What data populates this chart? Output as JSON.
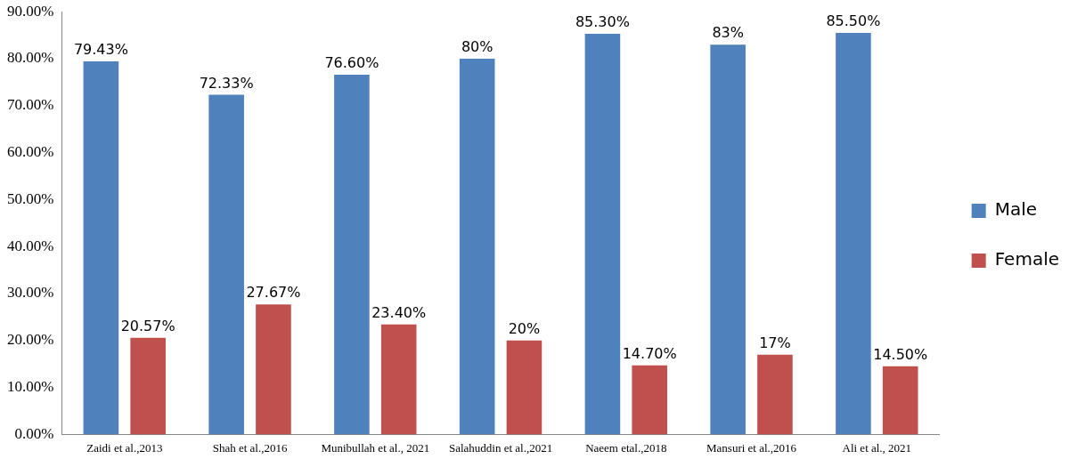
{
  "chart_data": {
    "type": "bar",
    "categories": [
      "Zaidi et al.,2013",
      "Shah et al.,2016",
      "Munibullah et al., 2021",
      "Salahuddin et al.,2021",
      "Naeem etal.,2018",
      "Mansuri et al.,2016",
      "Ali et al., 2021"
    ],
    "series": [
      {
        "name": "Male",
        "color": "#4f81bd",
        "values": [
          79.43,
          72.33,
          76.6,
          80,
          85.3,
          83,
          85.5
        ],
        "value_labels": [
          "79.43%",
          "72.33%",
          "76.60%",
          "80%",
          "85.30%",
          "83%",
          "85.50%"
        ]
      },
      {
        "name": "Female",
        "color": "#c0504d",
        "values": [
          20.57,
          27.67,
          23.4,
          20,
          14.7,
          17,
          14.5
        ],
        "value_labels": [
          "20.57%",
          "27.67%",
          "23.40%",
          "20%",
          "14.70%",
          "17%",
          "14.50%"
        ]
      }
    ],
    "ylim": [
      0,
      90
    ],
    "yticks": [
      {
        "value": 0,
        "label": "0.00%"
      },
      {
        "value": 10,
        "label": "10.00%"
      },
      {
        "value": 20,
        "label": "20.00%"
      },
      {
        "value": 30,
        "label": "30.00%"
      },
      {
        "value": 40,
        "label": "40.00%"
      },
      {
        "value": 50,
        "label": "50.00%"
      },
      {
        "value": 60,
        "label": "60.00%"
      },
      {
        "value": 70,
        "label": "70.00%"
      },
      {
        "value": 80,
        "label": "80.00%"
      },
      {
        "value": 90,
        "label": "90.00%"
      }
    ],
    "grid": false,
    "legend": "right"
  }
}
